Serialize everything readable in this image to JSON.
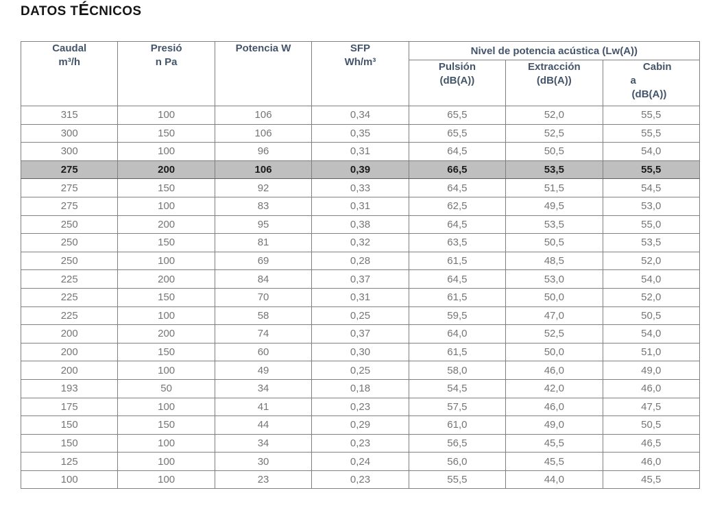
{
  "title": {
    "pre": "DATOS T",
    "accent": "É",
    "post": "CNICOS"
  },
  "table": {
    "columns": [
      {
        "lines": [
          "Caudal",
          "m³/h"
        ]
      },
      {
        "lines": [
          "Presió",
          "n Pa"
        ]
      },
      {
        "lines": [
          "Potencia W"
        ]
      },
      {
        "lines": [
          "SFP",
          "Wh/m³"
        ]
      }
    ],
    "acoustic_group": "Nivel de potencia acústica (Lw(A))",
    "acoustic_columns": [
      {
        "lines": [
          "Pulsión",
          "(dB(A))"
        ]
      },
      {
        "lines": [
          "Extracción",
          "(dB(A))"
        ]
      },
      {
        "lines": [
          "Cabin",
          "a",
          "(dB(A))"
        ]
      }
    ],
    "highlighted_row_index": 3,
    "rows": [
      [
        "315",
        "100",
        "106",
        "0,34",
        "65,5",
        "52,0",
        "55,5"
      ],
      [
        "300",
        "150",
        "106",
        "0,35",
        "65,5",
        "52,5",
        "55,5"
      ],
      [
        "300",
        "100",
        "96",
        "0,31",
        "64,5",
        "50,5",
        "54,0"
      ],
      [
        "275",
        "200",
        "106",
        "0,39",
        "66,5",
        "53,5",
        "55,5"
      ],
      [
        "275",
        "150",
        "92",
        "0,33",
        "64,5",
        "51,5",
        "54,5"
      ],
      [
        "275",
        "100",
        "83",
        "0,31",
        "62,5",
        "49,5",
        "53,0"
      ],
      [
        "250",
        "200",
        "95",
        "0,38",
        "64,5",
        "53,5",
        "55,0"
      ],
      [
        "250",
        "150",
        "81",
        "0,32",
        "63,5",
        "50,5",
        "53,5"
      ],
      [
        "250",
        "100",
        "69",
        "0,28",
        "61,5",
        "48,5",
        "52,0"
      ],
      [
        "225",
        "200",
        "84",
        "0,37",
        "64,5",
        "53,0",
        "54,0"
      ],
      [
        "225",
        "150",
        "70",
        "0,31",
        "61,5",
        "50,0",
        "52,0"
      ],
      [
        "225",
        "100",
        "58",
        "0,25",
        "59,5",
        "47,0",
        "50,5"
      ],
      [
        "200",
        "200",
        "74",
        "0,37",
        "64,0",
        "52,5",
        "54,0"
      ],
      [
        "200",
        "150",
        "60",
        "0,30",
        "61,5",
        "50,0",
        "51,0"
      ],
      [
        "200",
        "100",
        "49",
        "0,25",
        "58,0",
        "46,0",
        "49,0"
      ],
      [
        "193",
        "50",
        "34",
        "0,18",
        "54,5",
        "42,0",
        "46,0"
      ],
      [
        "175",
        "100",
        "41",
        "0,23",
        "57,5",
        "46,0",
        "47,5"
      ],
      [
        "150",
        "150",
        "44",
        "0,29",
        "61,0",
        "49,0",
        "50,5"
      ],
      [
        "150",
        "100",
        "34",
        "0,23",
        "56,5",
        "45,5",
        "46,5"
      ],
      [
        "125",
        "100",
        "30",
        "0,24",
        "56,0",
        "45,5",
        "46,0"
      ],
      [
        "100",
        "100",
        "23",
        "0,23",
        "55,5",
        "44,0",
        "45,5"
      ]
    ]
  },
  "colors": {
    "header_text": "#44546a",
    "data_text": "#757575",
    "grid_line": "#7f7f7f",
    "highlight_background": "#bfbfbf",
    "highlight_text": "#1b1b1b",
    "title_text": "#151515"
  }
}
